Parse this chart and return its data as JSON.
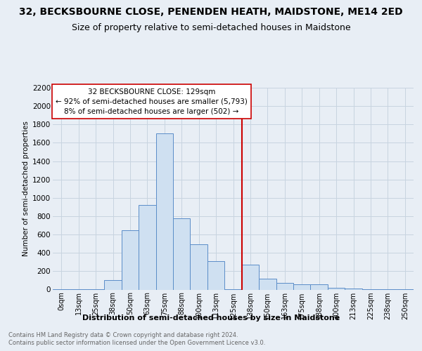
{
  "title": "32, BECKSBOURNE CLOSE, PENENDEN HEATH, MAIDSTONE, ME14 2ED",
  "subtitle": "Size of property relative to semi-detached houses in Maidstone",
  "xlabel": "Distribution of semi-detached houses by size in Maidstone",
  "ylabel": "Number of semi-detached properties",
  "footnote1": "Contains HM Land Registry data © Crown copyright and database right 2024.",
  "footnote2": "Contains public sector information licensed under the Open Government Licence v3.0.",
  "bar_labels": [
    "0sqm",
    "13sqm",
    "25sqm",
    "38sqm",
    "50sqm",
    "63sqm",
    "75sqm",
    "88sqm",
    "100sqm",
    "113sqm",
    "125sqm",
    "138sqm",
    "150sqm",
    "163sqm",
    "175sqm",
    "188sqm",
    "200sqm",
    "213sqm",
    "225sqm",
    "238sqm",
    "250sqm"
  ],
  "bar_values": [
    5,
    5,
    5,
    100,
    650,
    925,
    1700,
    775,
    490,
    310,
    5,
    270,
    120,
    70,
    60,
    55,
    20,
    10,
    5,
    5,
    5
  ],
  "bar_color": "#cfe0f1",
  "bar_edge_color": "#5b8dc8",
  "property_label": "32 BECKSBOURNE CLOSE: 129sqm",
  "annotation_line1": "← 92% of semi-detached houses are smaller (5,793)",
  "annotation_line2": "8% of semi-detached houses are larger (502) →",
  "annotation_box_color": "#ffffff",
  "annotation_box_edge": "#cc0000",
  "property_line_color": "#cc0000",
  "ylim": [
    0,
    2200
  ],
  "yticks": [
    0,
    200,
    400,
    600,
    800,
    1000,
    1200,
    1400,
    1600,
    1800,
    2000,
    2200
  ],
  "background_color": "#e8eef5",
  "plot_background": "#e8eef5",
  "grid_color": "#c8d4e0",
  "title_fontsize": 10,
  "subtitle_fontsize": 9
}
